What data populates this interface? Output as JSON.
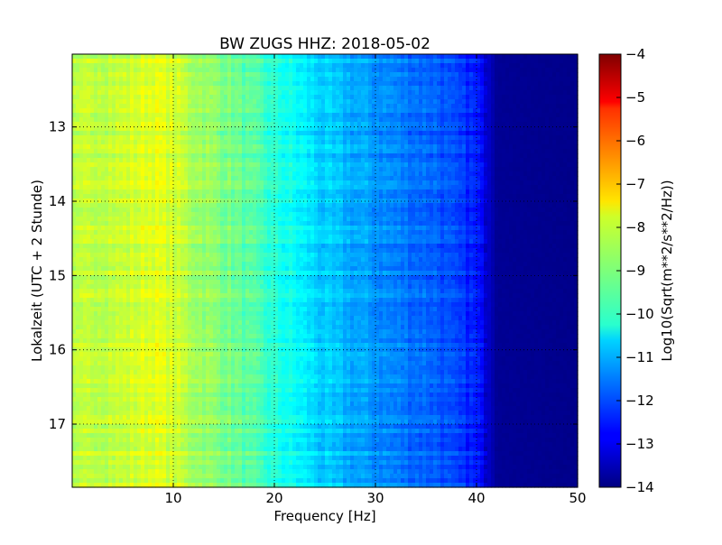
{
  "chart_data": {
    "type": "heatmap",
    "title": "BW ZUGS HHZ: 2018-05-02",
    "xlabel": "Frequency [Hz]",
    "ylabel": "Lokalzeit (UTC + 2 Stunde)",
    "xlim": [
      0,
      50
    ],
    "ylim": [
      12.02,
      17.85
    ],
    "y_inverted": true,
    "grid": true,
    "x_ticks": [
      10,
      20,
      30,
      40,
      50
    ],
    "y_ticks": [
      13,
      14,
      15,
      16,
      17
    ],
    "colormap": "jet",
    "colorbar": {
      "label": "Log10(Sqrt(m**2/s**2/Hz))",
      "range": [
        -14,
        -4
      ],
      "ticks": [
        -4,
        -5,
        -6,
        -7,
        -8,
        -9,
        -10,
        -11,
        -12,
        -13,
        -14
      ]
    },
    "spectrum_profile": [
      {
        "freq": 0,
        "value": -8.6
      },
      {
        "freq": 2,
        "value": -8.3
      },
      {
        "freq": 5,
        "value": -8.3
      },
      {
        "freq": 8,
        "value": -8.0
      },
      {
        "freq": 10,
        "value": -8.2
      },
      {
        "freq": 12,
        "value": -8.6
      },
      {
        "freq": 15,
        "value": -9.0
      },
      {
        "freq": 18,
        "value": -9.5
      },
      {
        "freq": 20,
        "value": -9.9
      },
      {
        "freq": 23,
        "value": -10.4
      },
      {
        "freq": 25,
        "value": -10.8
      },
      {
        "freq": 28,
        "value": -11.1
      },
      {
        "freq": 30,
        "value": -11.3
      },
      {
        "freq": 33,
        "value": -11.6
      },
      {
        "freq": 36,
        "value": -11.8
      },
      {
        "freq": 38,
        "value": -12.2
      },
      {
        "freq": 40,
        "value": -12.5
      },
      {
        "freq": 42,
        "value": -13.8
      },
      {
        "freq": 50,
        "value": -13.9
      }
    ]
  }
}
